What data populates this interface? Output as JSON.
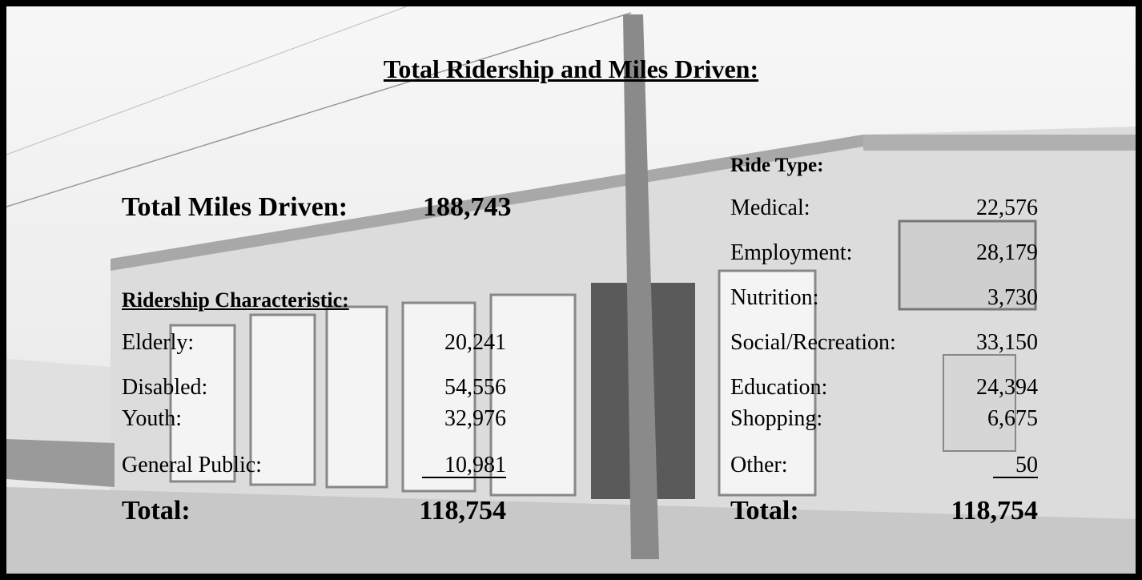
{
  "header": {
    "title": "Total Ridership and Miles Driven:"
  },
  "miles": {
    "label": "Total Miles Driven:",
    "value": "188,743"
  },
  "ridership": {
    "heading": "Ridership Characteristic:",
    "rows": [
      [
        "Elderly:",
        "20,241"
      ],
      [
        "Disabled:",
        "54,556"
      ],
      [
        "Youth:",
        "32,976"
      ],
      [
        "General Public:",
        "10,981"
      ]
    ],
    "total": [
      "Total:",
      "118,754"
    ]
  },
  "ride_type": {
    "heading": "Ride Type:",
    "rows": [
      [
        "Medical:",
        "22,576"
      ],
      [
        "Employment:",
        "28,179"
      ],
      [
        "Nutrition:",
        "3,730"
      ],
      [
        "Social/Recreation:",
        "33,150"
      ],
      [
        "Education:",
        "24,394"
      ],
      [
        "Shopping:",
        "6,675"
      ],
      [
        "Other:",
        "50"
      ]
    ],
    "total": [
      "Total:",
      "118,754"
    ]
  }
}
